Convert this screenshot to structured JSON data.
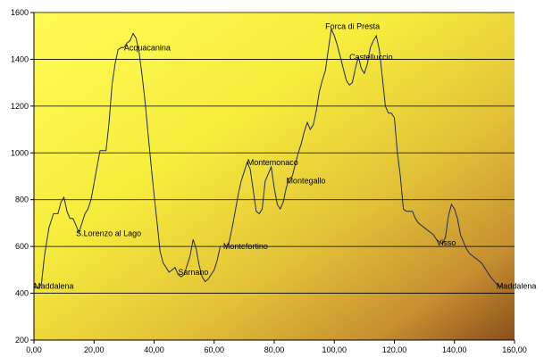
{
  "chart_data": {
    "type": "line",
    "title": "",
    "xlabel": "",
    "ylabel": "",
    "xlim": [
      0,
      160
    ],
    "ylim": [
      200,
      1600
    ],
    "grid": "horizontal",
    "x_ticks": [
      0,
      20,
      40,
      60,
      80,
      100,
      120,
      140,
      160
    ],
    "x_tick_labels": [
      "0,00",
      "20,00",
      "40,00",
      "60,00",
      "80,00",
      "100,00",
      "120,00",
      "140,00",
      "160,00"
    ],
    "y_ticks": [
      200,
      400,
      600,
      800,
      1000,
      1200,
      1400,
      1600
    ],
    "y_tick_labels": [
      "200",
      "400",
      "600",
      "800",
      "1000",
      "1200",
      "1400",
      "1600"
    ],
    "colors": {
      "line": "#1f2a55",
      "bg_light": "#fff94a",
      "bg_dark": "#8a4f1c"
    },
    "series": [
      {
        "x": [
          0,
          1.5,
          2.5,
          3.5,
          5,
          6.5,
          8,
          9,
          10,
          11,
          12,
          13,
          14,
          15,
          16,
          17,
          18,
          19,
          20,
          21,
          22,
          23,
          24,
          25,
          26,
          27,
          28,
          29,
          30,
          31,
          32,
          33,
          34,
          35,
          36,
          37,
          38,
          39,
          40,
          41,
          42,
          43,
          44,
          45,
          46,
          47,
          48,
          49,
          50,
          51,
          52,
          53,
          54,
          55,
          56,
          57,
          58,
          59,
          60,
          61,
          62,
          63,
          64,
          65,
          66,
          67,
          68,
          69,
          70,
          71,
          72,
          73,
          74,
          75,
          76,
          77,
          78,
          79,
          80,
          81,
          82,
          83,
          84,
          85,
          86,
          87,
          88,
          89,
          90,
          91,
          92,
          93,
          94,
          95,
          96,
          97,
          98,
          99,
          100,
          101,
          102,
          103,
          104,
          105,
          106,
          107,
          108,
          109,
          110,
          111,
          112,
          113,
          114,
          115,
          116,
          117,
          118,
          119,
          120,
          121,
          122,
          123,
          124,
          125,
          126,
          127,
          128,
          129,
          130,
          131,
          132,
          133,
          134,
          135,
          136,
          137,
          138,
          139,
          140,
          141,
          142,
          143,
          144,
          145,
          146,
          147,
          148,
          149,
          150,
          151,
          152,
          153,
          154,
          155,
          156
        ],
        "values": [
          430,
          420,
          440,
          560,
          680,
          740,
          740,
          790,
          810,
          750,
          720,
          720,
          690,
          660,
          700,
          740,
          760,
          800,
          870,
          940,
          1010,
          1010,
          1010,
          1130,
          1290,
          1380,
          1440,
          1450,
          1450,
          1470,
          1480,
          1510,
          1490,
          1430,
          1330,
          1220,
          1080,
          950,
          820,
          700,
          580,
          530,
          510,
          490,
          500,
          510,
          480,
          470,
          480,
          520,
          560,
          630,
          590,
          520,
          470,
          450,
          460,
          480,
          500,
          540,
          600,
          600,
          600,
          620,
          680,
          750,
          820,
          880,
          920,
          960,
          930,
          840,
          750,
          740,
          760,
          880,
          910,
          940,
          850,
          780,
          760,
          790,
          850,
          890,
          900,
          950,
          1000,
          1040,
          1090,
          1130,
          1100,
          1120,
          1180,
          1260,
          1310,
          1350,
          1440,
          1530,
          1500,
          1460,
          1410,
          1360,
          1310,
          1290,
          1300,
          1360,
          1410,
          1360,
          1340,
          1380,
          1450,
          1480,
          1500,
          1440,
          1320,
          1200,
          1170,
          1170,
          1150,
          1000,
          900,
          760,
          750,
          750,
          750,
          720,
          700,
          690,
          680,
          670,
          660,
          650,
          630,
          620,
          610,
          640,
          730,
          780,
          760,
          720,
          650,
          620,
          590,
          570,
          560,
          550,
          540,
          530,
          510,
          490,
          470,
          455,
          440,
          430,
          430
        ]
      }
    ],
    "annotations": [
      {
        "text": "Maddalena",
        "x": 0,
        "y": 430
      },
      {
        "text": "S.Lorenzo al Lago",
        "x": 14,
        "y": 655
      },
      {
        "text": "Acquacanina",
        "x": 30,
        "y": 1450
      },
      {
        "text": "Sarnano",
        "x": 48,
        "y": 490
      },
      {
        "text": "Montefortino",
        "x": 63,
        "y": 600
      },
      {
        "text": "Montemonaco",
        "x": 71,
        "y": 960
      },
      {
        "text": "Montegallo",
        "x": 84,
        "y": 880
      },
      {
        "text": "Forca di Presta",
        "x": 97,
        "y": 1540
      },
      {
        "text": "Castelluccio",
        "x": 105,
        "y": 1410
      },
      {
        "text": "Visso",
        "x": 134,
        "y": 615
      },
      {
        "text": "Maddalena",
        "x": 154,
        "y": 430
      }
    ]
  }
}
